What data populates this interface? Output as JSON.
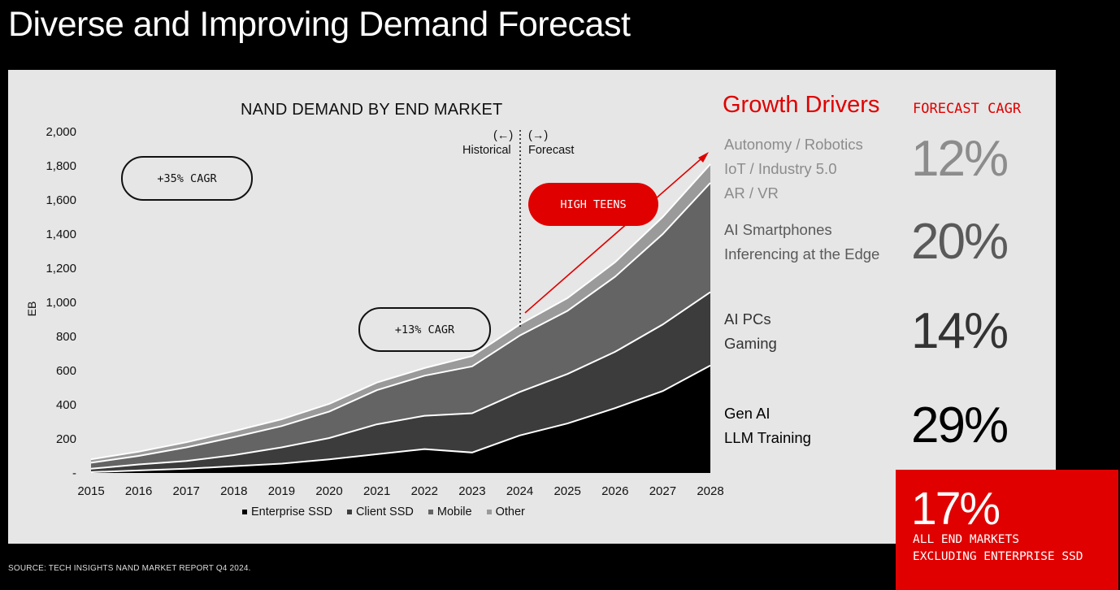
{
  "page_title": "Diverse and Improving Demand Forecast",
  "chart_data": {
    "type": "area",
    "title": "NAND DEMAND BY END MARKET",
    "xlabel": "",
    "ylabel": "EB",
    "x": [
      "2015",
      "2016",
      "2017",
      "2018",
      "2019",
      "2020",
      "2021",
      "2022",
      "2023",
      "2024",
      "2025",
      "2026",
      "2027",
      "2028"
    ],
    "y_ticks": [
      "-",
      "200",
      "400",
      "600",
      "800",
      "1,000",
      "1,200",
      "1,400",
      "1,600",
      "1,800",
      "2,000"
    ],
    "ylim": [
      0,
      2000
    ],
    "stacked": true,
    "series": [
      {
        "name": "Enterprise SSD",
        "color": "#000000",
        "values": [
          5,
          15,
          25,
          40,
          55,
          80,
          110,
          140,
          120,
          220,
          290,
          380,
          480,
          630
        ]
      },
      {
        "name": "Client SSD",
        "color": "#3c3c3c",
        "values": [
          20,
          35,
          45,
          65,
          95,
          125,
          175,
          195,
          230,
          255,
          290,
          330,
          390,
          430
        ]
      },
      {
        "name": "Mobile",
        "color": "#646464",
        "values": [
          35,
          50,
          80,
          105,
          125,
          155,
          200,
          235,
          275,
          330,
          370,
          440,
          530,
          640
        ]
      },
      {
        "name": "Other",
        "color": "#9a9a9a",
        "values": [
          20,
          25,
          30,
          35,
          40,
          45,
          45,
          45,
          60,
          65,
          75,
          85,
          100,
          110
        ]
      }
    ],
    "divider_x": "2024",
    "legend": "bottom",
    "grid": false
  },
  "annotations": {
    "historical_arrow": "(←)",
    "historical_label": "Historical",
    "forecast_arrow": "(→)",
    "forecast_label": "Forecast",
    "cagr_historical_early": "+35% CAGR",
    "cagr_historical_recent": "+13% CAGR",
    "cagr_forecast": "HIGH TEENS"
  },
  "growth_drivers": {
    "title": "Growth Drivers",
    "cagr_header": "FORECAST CAGR",
    "rows": [
      {
        "lines": [
          "Autonomy / Robotics",
          "IoT / Industry 5.0",
          "AR / VR"
        ],
        "cagr": "12%",
        "color": "#8c8c8c"
      },
      {
        "lines": [
          "AI Smartphones",
          "Inferencing at the Edge"
        ],
        "cagr": "20%",
        "color": "#5a5a5a"
      },
      {
        "lines": [
          "AI PCs",
          "Gaming"
        ],
        "cagr": "14%",
        "color": "#333333"
      },
      {
        "lines": [
          "Gen AI",
          "LLM Training"
        ],
        "cagr": "29%",
        "color": "#000000"
      }
    ]
  },
  "summary": {
    "cagr": "17%",
    "line1": "ALL END MARKETS",
    "line2": "EXCLUDING ENTERPRISE SSD"
  },
  "source": "SOURCE: TECH INSIGHTS NAND MARKET REPORT Q4 2024."
}
